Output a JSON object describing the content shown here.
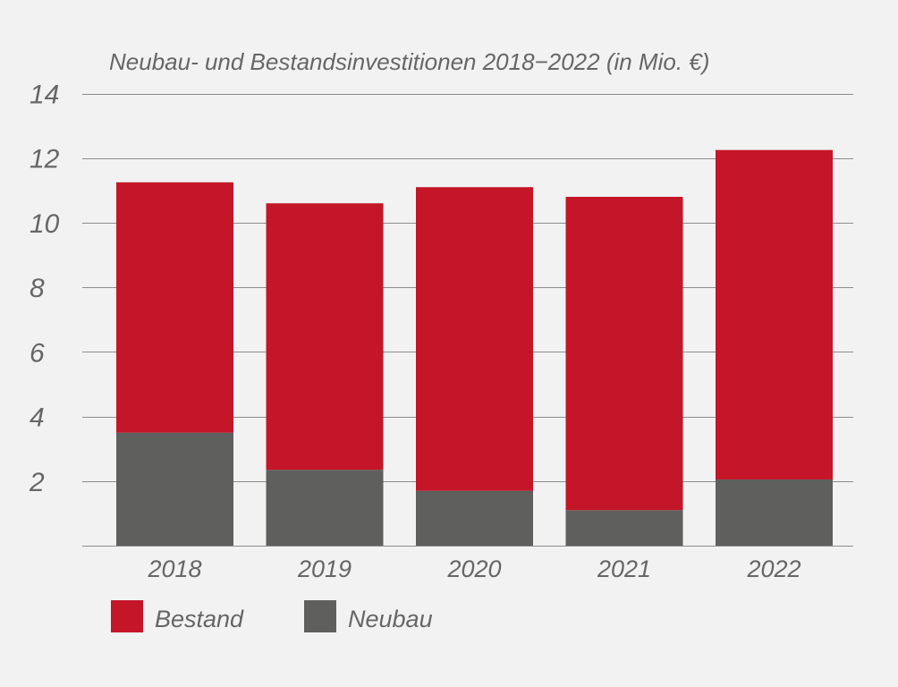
{
  "colors": {
    "background": "#f2f2f2",
    "bestand": "#c41628",
    "neubau": "#5f5f5d",
    "grid": "#8c8c8c",
    "text": "#666666"
  },
  "chart_data": {
    "type": "bar",
    "stacked": true,
    "title": "Neubau- und Bestandsinvestitionen 2018−2022 (in Mio. €)",
    "xlabel": "",
    "ylabel": "",
    "categories": [
      "2018",
      "2019",
      "2020",
      "2021",
      "2022"
    ],
    "ylim": [
      0,
      14
    ],
    "yticks": [
      2,
      4,
      6,
      8,
      10,
      12,
      14
    ],
    "grid": true,
    "legend_position": "bottom-left",
    "series": [
      {
        "name": "Neubau",
        "color": "#5f5f5d",
        "values": [
          3.5,
          2.35,
          1.7,
          1.1,
          2.05
        ]
      },
      {
        "name": "Bestand",
        "color": "#c41628",
        "values": [
          7.75,
          8.25,
          9.4,
          9.7,
          10.2
        ]
      }
    ],
    "legend": [
      "Bestand",
      "Neubau"
    ]
  }
}
